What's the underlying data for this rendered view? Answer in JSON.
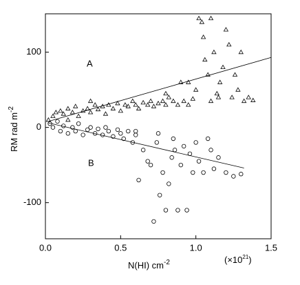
{
  "chart_data": {
    "type": "scatter",
    "x_label": "N(HI) cm",
    "x_label_sup": "-2",
    "y_label": "RM rad m",
    "y_label_sup": "-2",
    "x_multiplier": "(×10",
    "x_multiplier_sup": "21",
    "x_multiplier_close": ")",
    "annotations": [
      "A",
      "B"
    ],
    "xlim": [
      0,
      1.5
    ],
    "ylim": [
      -148,
      151
    ],
    "xticks": [
      {
        "value": 0,
        "label": "0.0"
      },
      0.5,
      {
        "value": 1,
        "label": "1.0"
      },
      1.5
    ],
    "yticks": [
      -100,
      0,
      100
    ],
    "series": [
      {
        "marker": "triangle",
        "color": "#000000",
        "x": [
          0.05,
          0.07,
          0.1,
          0.12,
          0.15,
          0.18,
          0.2,
          0.22,
          0.25,
          0.28,
          0.3,
          0.33,
          0.35,
          0.38,
          0.4,
          0.42,
          0.45,
          0.48,
          0.5,
          0.53,
          0.55,
          0.58,
          0.6,
          0.62,
          0.65,
          0.68,
          0.7,
          0.72,
          0.75,
          0.78,
          0.8,
          0.82,
          0.85,
          0.88,
          0.9,
          0.92,
          0.95,
          0.98,
          1.0,
          1.02,
          1.04,
          1.05,
          1.06,
          1.08,
          1.1,
          1.12,
          1.14,
          1.16,
          1.18,
          1.2,
          1.22,
          1.24,
          1.26,
          1.28,
          1.3,
          1.32,
          1.35,
          1.38,
          0.8,
          0.95,
          1.15,
          1.1,
          0.3,
          0.15,
          0.02
        ],
        "values": [
          15,
          20,
          22,
          18,
          25,
          20,
          28,
          15,
          22,
          25,
          20,
          30,
          24,
          28,
          18,
          30,
          25,
          32,
          22,
          30,
          28,
          35,
          30,
          25,
          33,
          30,
          35,
          28,
          32,
          35,
          30,
          40,
          35,
          30,
          60,
          35,
          30,
          38,
          50,
          145,
          140,
          120,
          90,
          70,
          145,
          100,
          45,
          60,
          80,
          130,
          110,
          40,
          70,
          50,
          100,
          35,
          40,
          36,
          45,
          60,
          40,
          35,
          35,
          10,
          10
        ]
      },
      {
        "marker": "circle",
        "color": "#000000",
        "x": [
          0.03,
          0.05,
          0.08,
          0.1,
          0.12,
          0.15,
          0.18,
          0.2,
          0.22,
          0.25,
          0.28,
          0.3,
          0.33,
          0.35,
          0.38,
          0.4,
          0.42,
          0.45,
          0.48,
          0.5,
          0.52,
          0.55,
          0.58,
          0.6,
          0.62,
          0.65,
          0.68,
          0.7,
          0.72,
          0.74,
          0.76,
          0.78,
          0.8,
          0.82,
          0.84,
          0.86,
          0.88,
          0.9,
          0.92,
          0.94,
          0.96,
          0.98,
          1.0,
          1.02,
          1.05,
          1.08,
          1.1,
          1.12,
          1.15,
          1.2,
          1.25,
          1.3,
          0.6,
          0.75,
          0.85
        ],
        "values": [
          5,
          0,
          8,
          -5,
          2,
          -8,
          0,
          -5,
          5,
          -10,
          -3,
          0,
          -8,
          -2,
          -10,
          0,
          -5,
          -12,
          -3,
          -8,
          -15,
          -5,
          -20,
          -10,
          -70,
          -30,
          -45,
          -50,
          -125,
          -20,
          -90,
          -60,
          -110,
          -75,
          -40,
          -30,
          -110,
          -50,
          -25,
          -110,
          -35,
          -60,
          -20,
          -45,
          -60,
          -15,
          -30,
          -55,
          -40,
          -60,
          -65,
          -62,
          -5,
          -8,
          -15
        ]
      }
    ],
    "lines": [
      {
        "color": "#000000",
        "x": [
          0.02,
          1.5
        ],
        "values": [
          8,
          93
        ]
      },
      {
        "color": "#000000",
        "x": [
          0.02,
          1.32
        ],
        "values": [
          6,
          -54
        ]
      }
    ]
  }
}
